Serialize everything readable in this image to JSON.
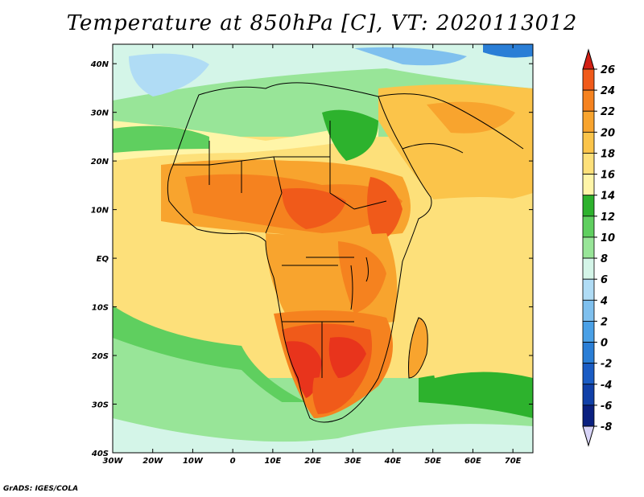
{
  "title": "Temperature at 850hPa [C], VT: 2020113012",
  "credit": "GrADS: IGES/COLA",
  "map": {
    "lon_range": [
      -30,
      75
    ],
    "lat_range": [
      -40,
      44
    ],
    "x_ticks": [
      "30W",
      "20W",
      "10W",
      "0",
      "10E",
      "20E",
      "30E",
      "40E",
      "50E",
      "60E",
      "70E"
    ],
    "y_ticks": [
      "40N",
      "30N",
      "20N",
      "10N",
      "EQ",
      "10S",
      "20S",
      "30S",
      "40S"
    ],
    "x_tick_values": [
      -30,
      -20,
      -10,
      0,
      10,
      20,
      30,
      40,
      50,
      60,
      70
    ],
    "y_tick_values": [
      40,
      30,
      20,
      10,
      0,
      -10,
      -20,
      -30,
      -40
    ]
  },
  "colorbar": {
    "labels": [
      "26",
      "24",
      "22",
      "20",
      "18",
      "16",
      "14",
      "12",
      "10",
      "8",
      "6",
      "4",
      "2",
      "0",
      "-2",
      "-4",
      "-6",
      "-8"
    ],
    "levels": [
      26,
      24,
      22,
      20,
      18,
      16,
      14,
      12,
      10,
      8,
      6,
      4,
      2,
      0,
      -2,
      -4,
      -6,
      -8
    ],
    "colors": [
      "#e8341c",
      "#f05a1a",
      "#f5821f",
      "#f8a42e",
      "#fbc44a",
      "#fde07a",
      "#fff5a8",
      "#2db22d",
      "#5fcf5f",
      "#98e598",
      "#d4f5e8",
      "#b0dcf5",
      "#7fc0ee",
      "#4aa0e6",
      "#2a7ed6",
      "#1a5cc4",
      "#1040a8",
      "#0a2080"
    ],
    "top_arrow_color": "#d21f14",
    "bottom_arrow_color": "#d8d4f8"
  }
}
